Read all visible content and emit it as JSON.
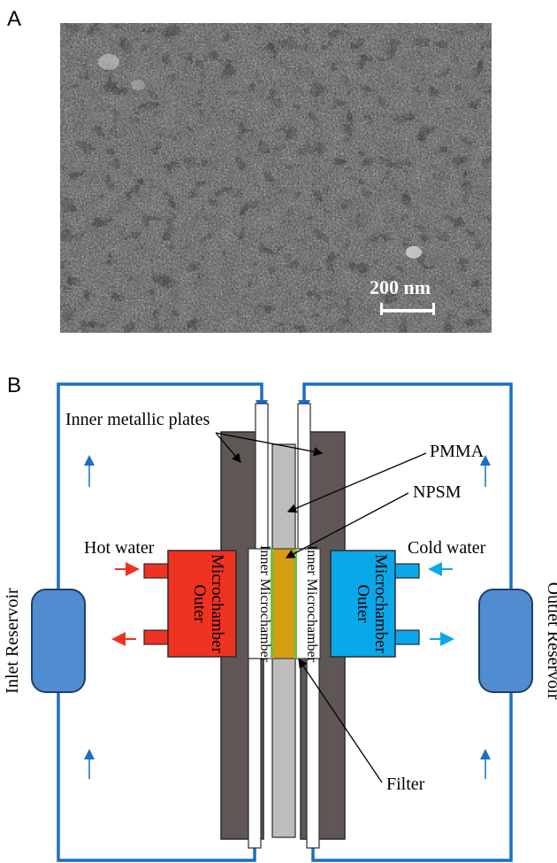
{
  "panel_a": {
    "letter": "A",
    "scale_bar_label": "200 nm"
  },
  "panel_b": {
    "letter": "B",
    "labels": {
      "inner_metallic_plates": "Inner metallic plates",
      "pmma": "PMMA",
      "npsm": "NPSM",
      "hot_water": "Hot water",
      "cold_water": "Cold water",
      "outer_microchamber_left_1": "Outer",
      "outer_microchamber_left_2": "Microchamber",
      "outer_microchamber_right_1": "Outer",
      "outer_microchamber_right_2": "Microchamber",
      "inner_microchamber_left": "Inner Microchamber",
      "inner_microchamber_right": "Inner Microchamber",
      "inlet_reservoir": "Inlet Reservoir",
      "outlet_reservoir": "Outlet Reservoir",
      "filter": "Filter"
    },
    "colors": {
      "hot": "#ee3323",
      "cold": "#0aa8e8",
      "loop": "#1a6fc4",
      "reservoir": "#4f8cd0",
      "metal": "#5f5756",
      "pmma": "#bdbdbd",
      "npsm": "#d59e12",
      "filter": "#6cc04a"
    }
  }
}
